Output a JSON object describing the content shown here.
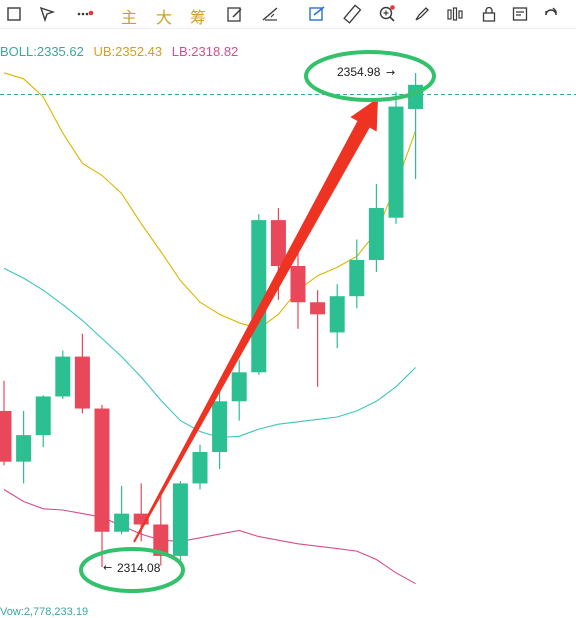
{
  "toolbar": {
    "tools": [
      {
        "icon": "rectangle-icon"
      },
      {
        "icon": "cursor-arrow-icon"
      },
      {
        "icon": "line-style-icon"
      },
      {
        "icon": "main-char-icon",
        "label": "主"
      },
      {
        "icon": "big-char-icon",
        "label": "大"
      },
      {
        "icon": "chip-char-icon",
        "label": "筹"
      },
      {
        "icon": "draw-edit-icon"
      },
      {
        "icon": "line-tool-icon"
      },
      {
        "icon": "chart-tool-icon"
      },
      {
        "icon": "ruler-icon"
      },
      {
        "icon": "zoom-in-icon"
      },
      {
        "icon": "brush-icon"
      },
      {
        "icon": "candles-icon"
      },
      {
        "icon": "lock-icon"
      },
      {
        "icon": "edit-doc-icon"
      },
      {
        "icon": "magnet-icon"
      }
    ],
    "accent_dot_color": "#e53935"
  },
  "legend": {
    "boll": "BOLL:2335.62",
    "ub": "UB:2352.43",
    "lb": "LB:2318.82"
  },
  "volume_label": "Vow:2,778,233.19",
  "chart_data": {
    "type": "candlestick",
    "up_color": "#2bbf92",
    "down_color": "#e8485a",
    "candles": [
      {
        "open": 2327.0,
        "high": 2329.5,
        "low": 2322.5,
        "close": 2322.8
      },
      {
        "open": 2322.8,
        "high": 2327.0,
        "low": 2321.0,
        "close": 2325.0
      },
      {
        "open": 2325.0,
        "high": 2328.3,
        "low": 2324.0,
        "close": 2328.2
      },
      {
        "open": 2328.2,
        "high": 2332.0,
        "low": 2328.0,
        "close": 2331.5
      },
      {
        "open": 2331.5,
        "high": 2333.4,
        "low": 2326.8,
        "close": 2327.2
      },
      {
        "open": 2327.2,
        "high": 2327.5,
        "low": 2314.08,
        "close": 2317.0
      },
      {
        "open": 2317.0,
        "high": 2320.8,
        "low": 2316.8,
        "close": 2318.5
      },
      {
        "open": 2318.5,
        "high": 2321.0,
        "low": 2316.2,
        "close": 2317.6
      },
      {
        "open": 2317.6,
        "high": 2320.0,
        "low": 2314.2,
        "close": 2315.0
      },
      {
        "open": 2315.0,
        "high": 2321.2,
        "low": 2314.4,
        "close": 2321.0
      },
      {
        "open": 2321.0,
        "high": 2324.2,
        "low": 2320.5,
        "close": 2323.6
      },
      {
        "open": 2323.6,
        "high": 2328.8,
        "low": 2322.2,
        "close": 2327.8
      },
      {
        "open": 2327.8,
        "high": 2331.2,
        "low": 2326.2,
        "close": 2330.2
      },
      {
        "open": 2330.2,
        "high": 2343.3,
        "low": 2330.0,
        "close": 2342.8
      },
      {
        "open": 2342.8,
        "high": 2343.8,
        "low": 2336.2,
        "close": 2339.0
      },
      {
        "open": 2339.0,
        "high": 2341.0,
        "low": 2333.8,
        "close": 2336.0
      },
      {
        "open": 2336.0,
        "high": 2337.0,
        "low": 2329.0,
        "close": 2335.0
      },
      {
        "open": 2333.5,
        "high": 2337.5,
        "low": 2332.2,
        "close": 2336.5
      },
      {
        "open": 2336.5,
        "high": 2341.2,
        "low": 2335.5,
        "close": 2339.5
      },
      {
        "open": 2339.5,
        "high": 2345.8,
        "low": 2338.5,
        "close": 2343.8
      },
      {
        "open": 2343.0,
        "high": 2353.4,
        "low": 2342.5,
        "close": 2352.2
      },
      {
        "open": 2352.0,
        "high": 2354.98,
        "low": 2346.2,
        "close": 2354.0
      }
    ],
    "bands": {
      "ub": [
        2355.0,
        2354.5,
        2353.0,
        2350.0,
        2347.5,
        2346.5,
        2345.0,
        2342.5,
        2340.2,
        2337.8,
        2336.0,
        2335.0,
        2334.3,
        2333.8,
        2335.0,
        2337.0,
        2338.2,
        2338.9,
        2339.8,
        2341.8,
        2345.7,
        2350.2
      ],
      "mid": [
        2338.8,
        2338.0,
        2337.0,
        2335.8,
        2334.5,
        2333.0,
        2331.5,
        2329.8,
        2327.9,
        2326.2,
        2325.3,
        2324.8,
        2324.9,
        2325.5,
        2325.9,
        2326.1,
        2326.3,
        2326.5,
        2327.0,
        2327.8,
        2329.0,
        2330.6
      ],
      "lb": [
        2320.5,
        2319.5,
        2318.9,
        2318.8,
        2318.5,
        2318.2,
        2317.5,
        2316.8,
        2316.3,
        2316.2,
        2316.5,
        2316.8,
        2317.1,
        2316.6,
        2316.3,
        2316.0,
        2315.8,
        2315.6,
        2315.4,
        2314.7,
        2313.6,
        2312.7
      ]
    },
    "band_colors": {
      "ub": "#e0b400",
      "mid": "#3cc4c0",
      "lb": "#d94b8f"
    },
    "current_price_line": 2353.2,
    "annotations": {
      "high_label": "2354.98",
      "low_label": "2314.08",
      "circle_color": "#33c26b",
      "arrow_color": "#ee3322"
    }
  }
}
